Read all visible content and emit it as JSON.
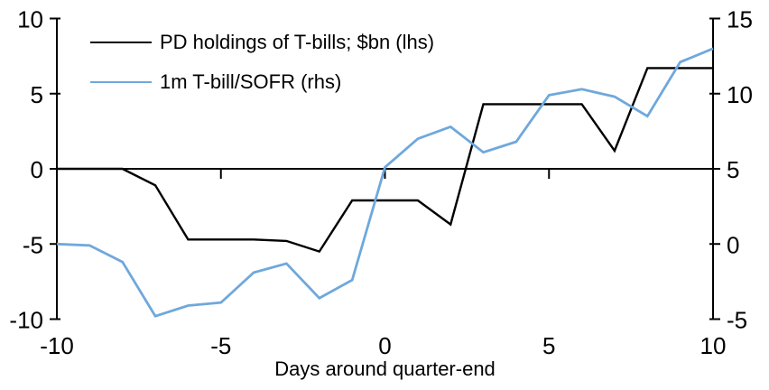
{
  "chart_data": {
    "type": "line",
    "xlabel": "Days around quarter-end",
    "xlim": [
      -10,
      10
    ],
    "x_ticks": [
      -10,
      -5,
      0,
      5,
      10
    ],
    "x_ticks_with_marks": [
      -5,
      0,
      5
    ],
    "left_axis": {
      "min": -10,
      "max": 10,
      "ticks": [
        10,
        5,
        0,
        -5,
        -10
      ]
    },
    "right_axis": {
      "min": -5,
      "max": 15,
      "ticks": [
        15,
        10,
        5,
        0,
        -5
      ]
    },
    "grid": false,
    "legend_position": "top-left",
    "x": [
      -10,
      -9,
      -8,
      -7,
      -6,
      -5,
      -4,
      -3,
      -2,
      -1,
      0,
      1,
      2,
      3,
      4,
      5,
      6,
      7,
      8,
      9,
      10
    ],
    "series": [
      {
        "name": "PD holdings of T-bills; $bn (lhs)",
        "axis": "left",
        "color": "#000000",
        "stroke_width": 2.4,
        "values": [
          0,
          0,
          0,
          -1.1,
          -4.7,
          -4.7,
          -4.7,
          -4.8,
          -5.5,
          -2.1,
          -2.1,
          -2.1,
          -3.7,
          4.3,
          4.3,
          4.3,
          4.3,
          1.2,
          6.7,
          6.7,
          6.7
        ]
      },
      {
        "name": "1m T-bill/SOFR (rhs)",
        "axis": "right",
        "color": "#6FA8DC",
        "stroke_width": 2.8,
        "values": [
          0.0,
          -0.1,
          -1.2,
          -4.8,
          -4.1,
          -3.9,
          -1.9,
          -1.3,
          -3.6,
          -2.4,
          5.1,
          7.0,
          7.8,
          6.1,
          6.8,
          9.9,
          10.3,
          9.8,
          8.5,
          12.1,
          13.0
        ]
      }
    ],
    "colors": {
      "axis": "#000000",
      "text": "#000000",
      "background": "#ffffff"
    }
  }
}
